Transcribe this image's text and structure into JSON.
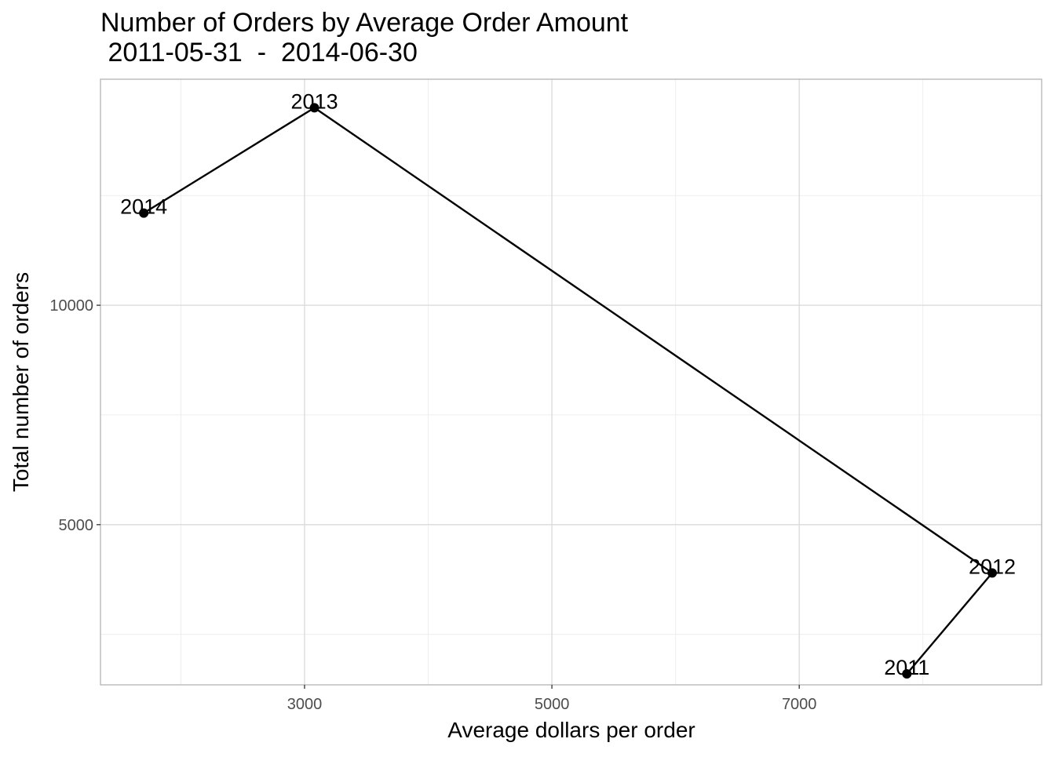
{
  "chart_data": {
    "type": "line",
    "title": "Number of Orders by Average Order Amount",
    "subtitle": " 2011-05-31  -  2014-06-30",
    "xlabel": "Average dollars per order",
    "ylabel": "Total number of orders",
    "xlim": [
      1350,
      8960
    ],
    "ylim": [
      1350,
      15150
    ],
    "x_ticks": [
      3000,
      5000,
      7000
    ],
    "x_tick_labels": [
      "3000",
      "5000",
      "7000"
    ],
    "x_minor_ticks": [
      2000,
      4000,
      6000,
      8000
    ],
    "y_ticks": [
      5000,
      10000
    ],
    "y_tick_labels": [
      "5000",
      "10000"
    ],
    "y_minor_ticks": [
      2500,
      7500,
      12500
    ],
    "grid": true,
    "legend": "none",
    "points": [
      {
        "label": "2011",
        "x": 7870,
        "y": 1600
      },
      {
        "label": "2012",
        "x": 8560,
        "y": 3900
      },
      {
        "label": "2013",
        "x": 3080,
        "y": 14500
      },
      {
        "label": "2014",
        "x": 1700,
        "y": 12100
      }
    ],
    "path_order": [
      "2011",
      "2012",
      "2013",
      "2014"
    ]
  }
}
